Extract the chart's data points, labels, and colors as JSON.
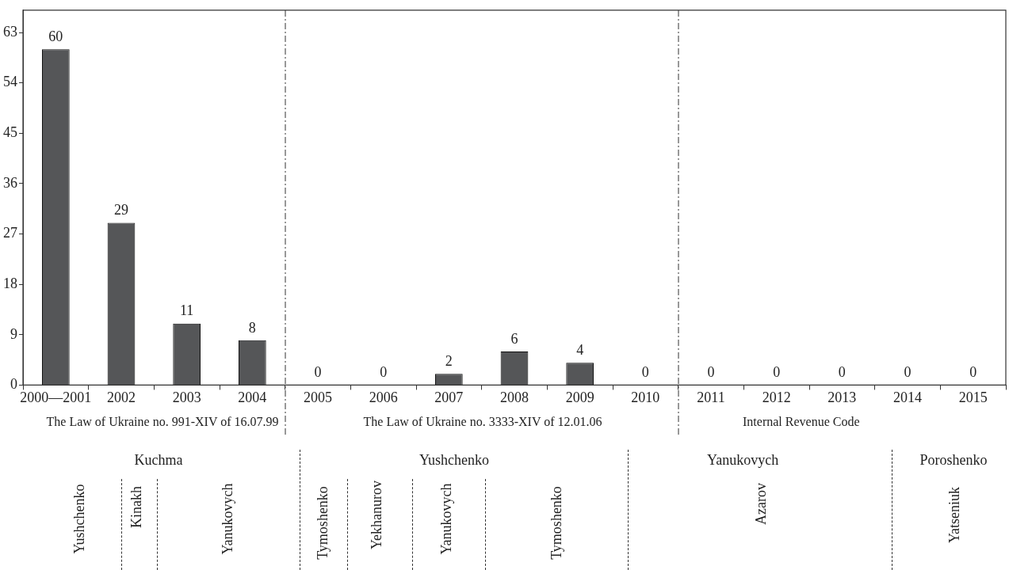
{
  "chart_data": {
    "type": "bar",
    "categories": [
      "2000—2001",
      "2002",
      "2003",
      "2004",
      "2005",
      "2006",
      "2007",
      "2008",
      "2009",
      "2010",
      "2011",
      "2012",
      "2013",
      "2014",
      "2015"
    ],
    "values": [
      60,
      29,
      11,
      8,
      0,
      0,
      2,
      6,
      4,
      0,
      0,
      0,
      0,
      0,
      0
    ],
    "color": "#555658",
    "ylim": [
      0,
      67
    ],
    "yticks": [
      0,
      9,
      18,
      27,
      36,
      45,
      54,
      63
    ],
    "grid": false,
    "legend": false,
    "data_labels": true,
    "annotations": [
      "The Law of Ukraine no.  991-XIV of 16.07.99",
      "The Law of Ukraine no. 3333-XIV of 12.01.06",
      "Internal Revenue Code",
      "Kuchma",
      "Yushchenko",
      "Yanukovych",
      "Poroshenko",
      "Yushchenko",
      "Kinakh",
      "Yanukovych",
      "Tymoshenko",
      "Yekhanurov",
      "Yanukovych",
      "Tymoshenko",
      "Azarov",
      "Yatseniuk"
    ]
  }
}
